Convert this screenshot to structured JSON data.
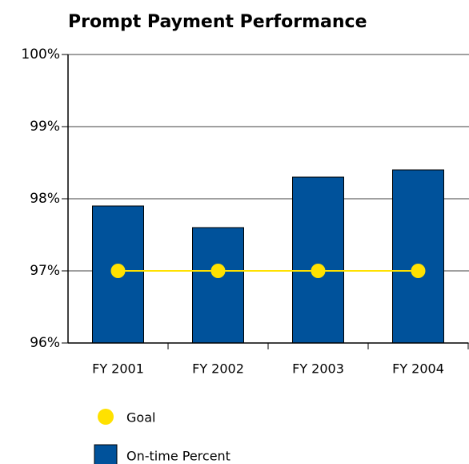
{
  "chart_data": {
    "type": "bar",
    "title": "Prompt Payment Performance",
    "categories": [
      "FY 2001",
      "FY 2002",
      "FY 2003",
      "FY 2004"
    ],
    "series": [
      {
        "name": "Goal",
        "type": "line",
        "color": "#ffe100",
        "values": [
          97,
          97,
          97,
          97
        ]
      },
      {
        "name": "On-time Percent",
        "type": "bar",
        "color": "#00529b",
        "values": [
          97.9,
          97.6,
          98.3,
          98.4
        ]
      }
    ],
    "ylim": [
      96,
      100
    ],
    "yticks": [
      {
        "value": 96,
        "label": "96%"
      },
      {
        "value": 97,
        "label": "97%"
      },
      {
        "value": 98,
        "label": "98%"
      },
      {
        "value": 99,
        "label": "99%"
      },
      {
        "value": 100,
        "label": "100%"
      }
    ],
    "grid": true
  }
}
